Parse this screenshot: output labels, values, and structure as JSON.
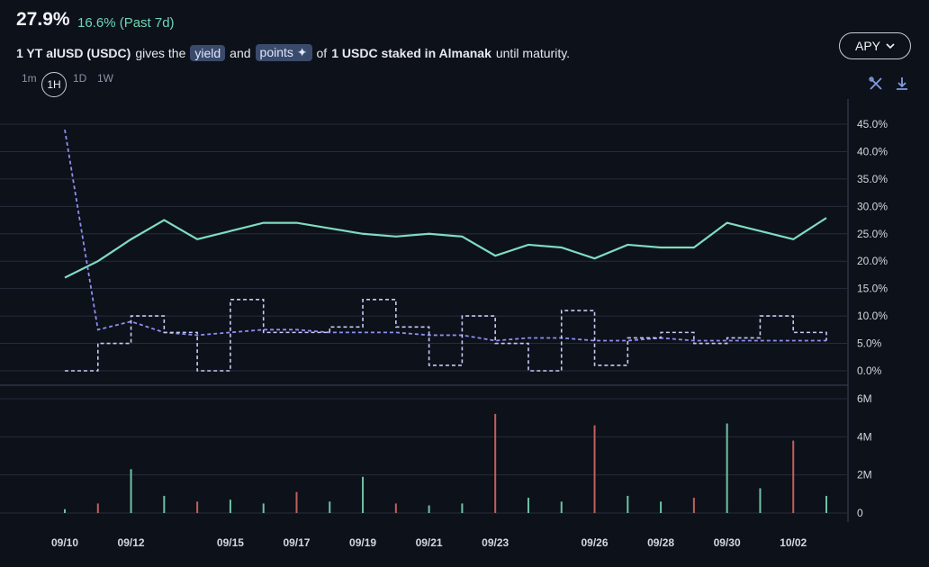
{
  "header": {
    "value": "27.9%",
    "change": "16.6% (Past 7d)"
  },
  "description": {
    "part1": "1 YT alUSD (USDC)",
    "part2": "gives the",
    "yield_tag": "yield",
    "part3": "and",
    "points_tag": "points ✦",
    "part4": "of",
    "part5": "1 USDC staked in Almanak",
    "part6": "until maturity."
  },
  "metric_selector": {
    "label": "APY"
  },
  "timeframes": [
    "1m",
    "1H",
    "1D",
    "1W"
  ],
  "active_timeframe": "1H",
  "icons": [
    "tools-icon",
    "download-icon"
  ],
  "colors": {
    "implied": "#7fdcc0",
    "underlying": "#8d8ff0",
    "points": "#c9c8f5",
    "vol_up": "#6fc3a4",
    "vol_down": "#c2605a",
    "background": "#0d111a"
  },
  "chart_data": [
    {
      "type": "line",
      "title": "",
      "x": [
        "09/10",
        "09/11",
        "09/12",
        "09/13",
        "09/14",
        "09/15",
        "09/16",
        "09/17",
        "09/18",
        "09/19",
        "09/20",
        "09/21",
        "09/22",
        "09/23",
        "09/24",
        "09/25",
        "09/26",
        "09/27",
        "09/28",
        "09/29",
        "09/30",
        "10/01",
        "10/02",
        "10/03"
      ],
      "ylim": [
        0,
        45
      ],
      "y_unit": "%",
      "y_ticks": [
        "0.0%",
        "5.0%",
        "10.0%",
        "15.0%",
        "20.0%",
        "25.0%",
        "30.0%",
        "35.0%",
        "40.0%",
        "45.0%"
      ],
      "x_ticks": [
        "09/10",
        "09/12",
        "09/15",
        "09/17",
        "09/19",
        "09/21",
        "09/23",
        "09/26",
        "09/28",
        "09/30",
        "10/02"
      ],
      "series": [
        {
          "values": [
            17,
            20,
            24,
            27.5,
            24,
            25.5,
            27,
            27,
            26,
            25,
            24.5,
            25,
            24.5,
            21,
            23,
            22.5,
            20.5,
            23,
            22.5,
            22.5,
            27,
            25.5,
            24,
            27.9
          ]
        },
        {
          "values": [
            44,
            7.5,
            9,
            7,
            6.5,
            7,
            7.5,
            7.5,
            7,
            7,
            7,
            6.5,
            6.5,
            5.5,
            6,
            6,
            5.5,
            5.5,
            6,
            5.5,
            5.5,
            5.5,
            5.5,
            5.5
          ]
        },
        {
          "values": [
            0,
            5,
            10,
            7,
            0,
            13,
            7,
            7,
            8,
            13,
            8,
            1,
            10,
            5,
            0,
            11,
            1,
            6,
            7,
            5,
            6,
            10,
            7,
            5.5
          ]
        }
      ]
    },
    {
      "type": "bar",
      "title": "",
      "x": [
        "09/10",
        "09/11",
        "09/12",
        "09/13",
        "09/14",
        "09/15",
        "09/16",
        "09/17",
        "09/18",
        "09/19",
        "09/20",
        "09/21",
        "09/22",
        "09/23",
        "09/24",
        "09/25",
        "09/26",
        "09/27",
        "09/28",
        "09/29",
        "09/30",
        "10/01",
        "10/02",
        "10/03"
      ],
      "ylim": [
        0,
        6000000
      ],
      "y_ticks": [
        "0",
        "2M",
        "4M",
        "6M"
      ],
      "values": [
        0.2,
        0.5,
        2.3,
        0.9,
        0.6,
        0.7,
        0.5,
        1.1,
        0.6,
        1.9,
        0.5,
        0.4,
        0.5,
        5.2,
        0.8,
        0.6,
        4.6,
        0.9,
        0.6,
        0.8,
        4.7,
        1.3,
        3.8,
        0.9
      ],
      "unit": "M"
    }
  ]
}
